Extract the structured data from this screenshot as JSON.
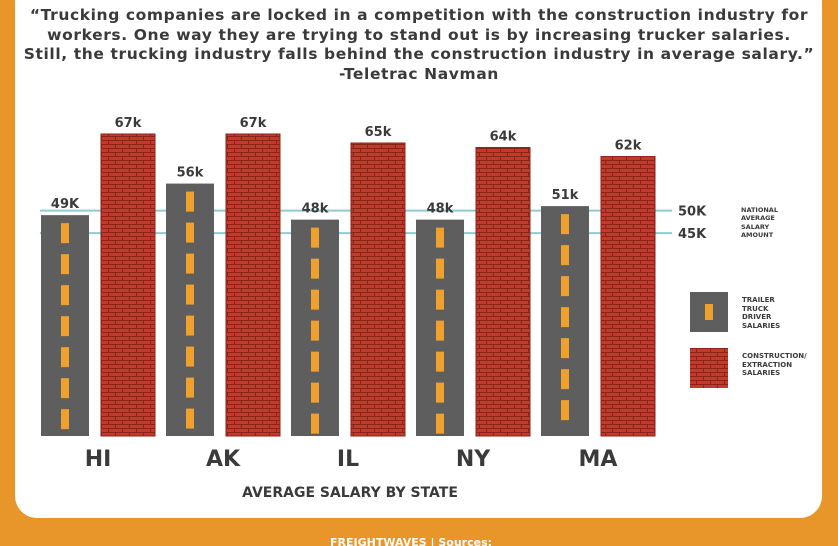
{
  "chart_data": {
    "type": "bar",
    "quote_lines": [
      "“Trucking companies are locked in a competition with the construction industry for",
      "workers. One way they are trying to stand out is by increasing trucker salaries.",
      "Still, the trucking industry falls behind the construction industry in average salary.”",
      "-Teletrac Navman"
    ],
    "x_label": "AVERAGE SALARY BY STATE",
    "categories": [
      "HI",
      "AK",
      "IL",
      "NY",
      "MA"
    ],
    "series": [
      {
        "name": "TRAILER TRUCK DRIVER SALARIES",
        "color": "#5e5e5e",
        "values": [
          49,
          56,
          48,
          48,
          51
        ],
        "value_labels": [
          "49K",
          "56k",
          "48k",
          "48k",
          "51k"
        ]
      },
      {
        "name": "CONSTRUCTION/ EXTRACTION SALARIES",
        "color": "#c23a2c",
        "values": [
          67,
          67,
          65,
          64,
          62
        ],
        "value_labels": [
          "67k",
          "67k",
          "65k",
          "64k",
          "62k"
        ]
      }
    ],
    "reference_lines": [
      {
        "value": 50,
        "label": "50K",
        "note": "NATIONAL AVERAGE SALARY AMOUNT"
      },
      {
        "value": 45,
        "label": "45K"
      }
    ],
    "reference_color": "#8ecbd3",
    "footer": "FREIGHTWAVES | Sources:"
  }
}
